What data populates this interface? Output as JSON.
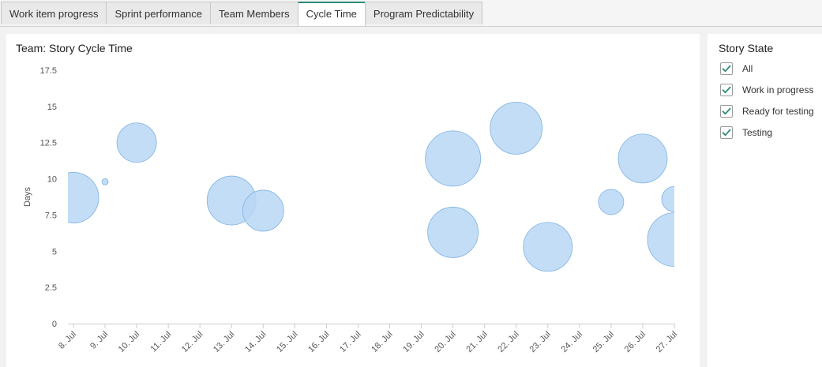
{
  "tabs": [
    {
      "label": "Work item progress",
      "active": false
    },
    {
      "label": "Sprint performance",
      "active": false
    },
    {
      "label": "Team Members",
      "active": false
    },
    {
      "label": "Cycle Time",
      "active": true
    },
    {
      "label": "Program Predictability",
      "active": false
    }
  ],
  "filter_panel": {
    "title": "Story State",
    "items": [
      {
        "label": "All",
        "checked": true
      },
      {
        "label": "Work in progress",
        "checked": true
      },
      {
        "label": "Ready for testing",
        "checked": true
      },
      {
        "label": "Testing",
        "checked": true
      }
    ],
    "check_color": "#2e8b7a",
    "check_icon": "checkmark-icon"
  },
  "chart_data": {
    "type": "scatter",
    "title": "Team: Story Cycle Time",
    "xlabel": "",
    "ylabel": "Days",
    "categories": [
      "8. Jul",
      "9. Jul",
      "10. Jul",
      "11. Jul",
      "12. Jul",
      "13. Jul",
      "14. Jul",
      "15. Jul",
      "16. Jul",
      "17. Jul",
      "18. Jul",
      "19. Jul",
      "20. Jul",
      "21. Jul",
      "22. Jul",
      "23. Jul",
      "24. Jul",
      "25. Jul",
      "26. Jul",
      "27. Jul"
    ],
    "ylim": [
      0,
      17.5
    ],
    "yticks": [
      "0",
      "2.5",
      "5",
      "7.5",
      "10",
      "12.5",
      "15",
      "17.5"
    ],
    "grid": false,
    "bubble_color": "#b8d7f5",
    "bubble_stroke": "#7fb2e3",
    "points": [
      {
        "x": "8. Jul",
        "y": 8.7,
        "size": 32
      },
      {
        "x": "9. Jul",
        "y": 9.8,
        "size": 4
      },
      {
        "x": "10. Jul",
        "y": 12.5,
        "size": 25
      },
      {
        "x": "13. Jul",
        "y": 8.5,
        "size": 31
      },
      {
        "x": "14. Jul",
        "y": 7.8,
        "size": 26
      },
      {
        "x": "20. Jul",
        "y": 11.4,
        "size": 35
      },
      {
        "x": "20. Jul",
        "y": 6.3,
        "size": 32
      },
      {
        "x": "22. Jul",
        "y": 13.5,
        "size": 33
      },
      {
        "x": "23. Jul",
        "y": 5.3,
        "size": 31
      },
      {
        "x": "25. Jul",
        "y": 8.4,
        "size": 16
      },
      {
        "x": "26. Jul",
        "y": 11.4,
        "size": 31
      },
      {
        "x": "27. Jul",
        "y": 8.6,
        "size": 16
      },
      {
        "x": "27. Jul",
        "y": 5.8,
        "size": 34
      }
    ]
  }
}
